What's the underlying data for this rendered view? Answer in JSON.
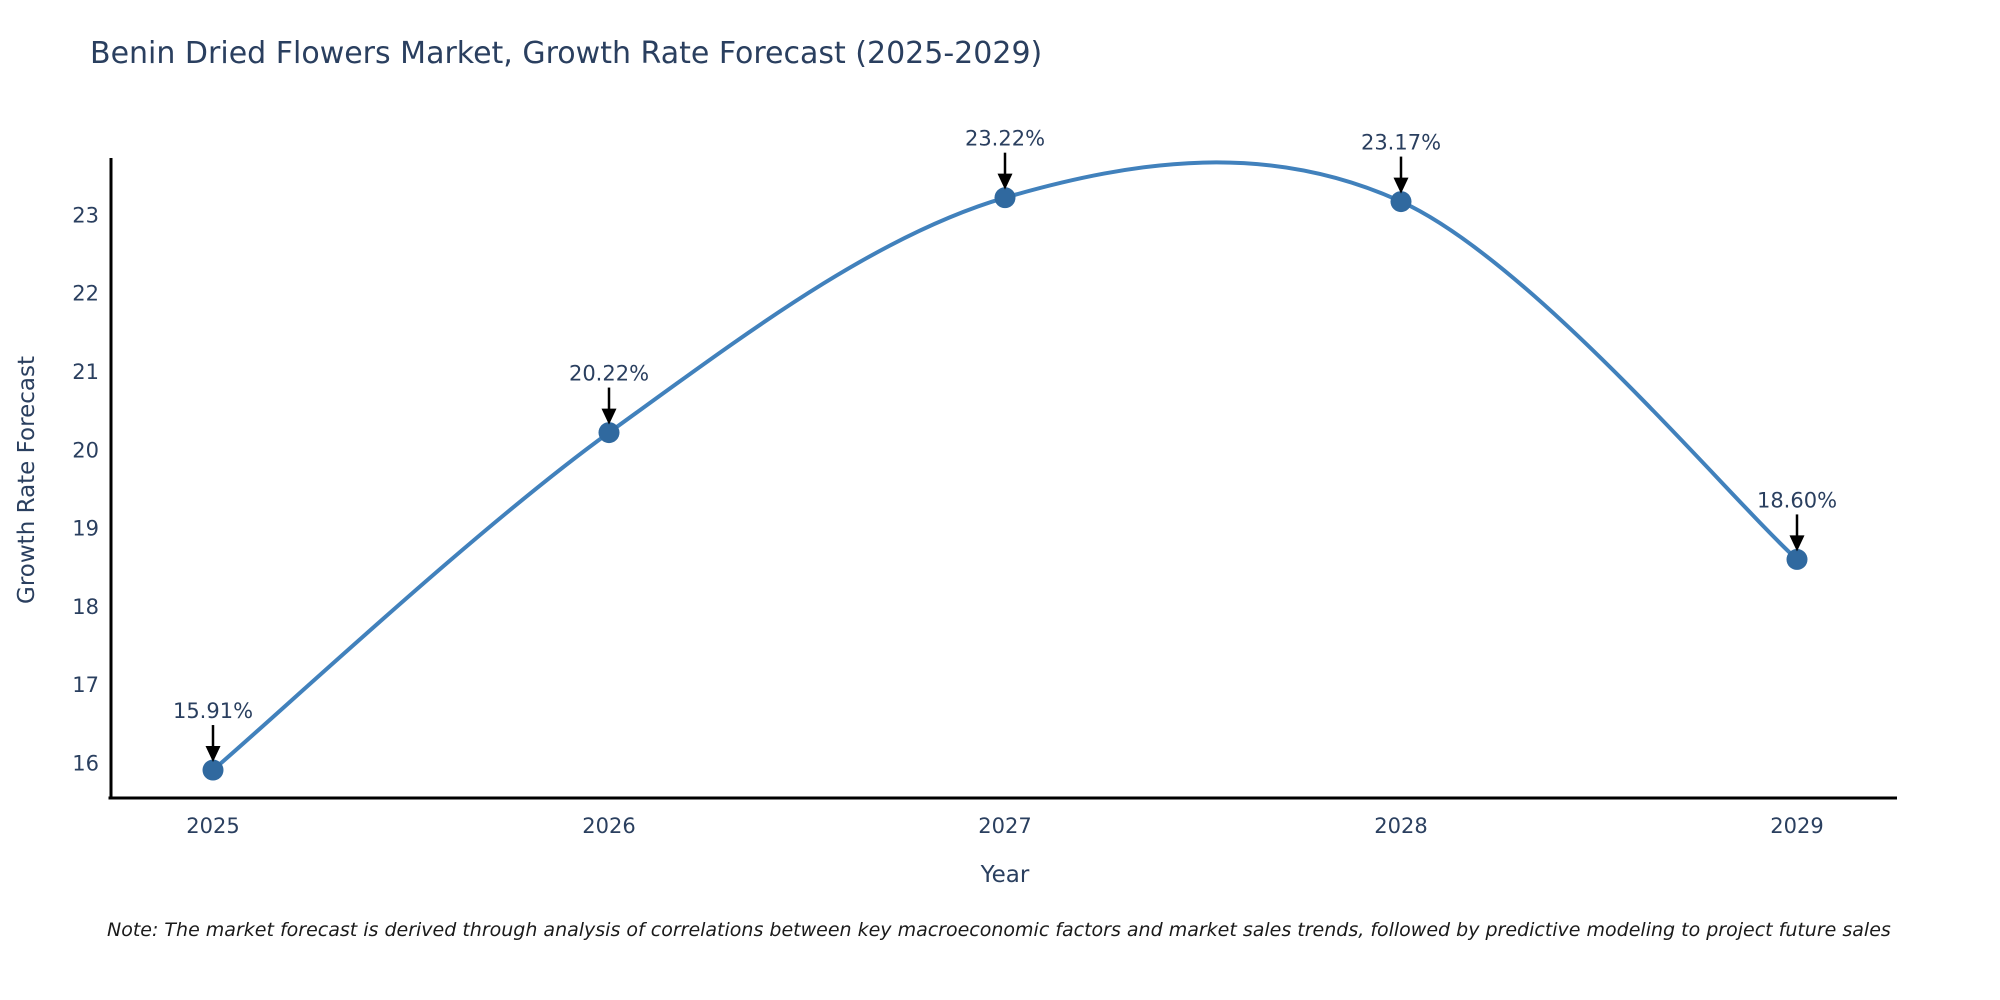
{
  "page": {
    "background": "#ffffff"
  },
  "chart_data": {
    "type": "line",
    "title": "Benin Dried Flowers Market, Growth Rate Forecast (2025-2029)",
    "xlabel": "Year",
    "ylabel": "Growth Rate Forecast",
    "x": [
      2025,
      2026,
      2027,
      2028,
      2029
    ],
    "x_tick_labels": [
      "2025",
      "2026",
      "2027",
      "2028",
      "2029"
    ],
    "y": [
      15.91,
      20.22,
      23.22,
      23.17,
      18.6
    ],
    "point_labels": [
      "15.91%",
      "20.22%",
      "23.22%",
      "23.17%",
      "18.60%"
    ],
    "y_ticks": [
      16,
      17,
      18,
      19,
      20,
      21,
      22,
      23
    ],
    "y_tick_labels": [
      "16",
      "17",
      "18",
      "19",
      "20",
      "21",
      "22",
      "23"
    ],
    "xlim": [
      2024.73,
      2029.25
    ],
    "ylim": [
      15.55,
      23.77
    ],
    "line_shape": "spline",
    "grid": false,
    "legend_position": "none",
    "colors": {
      "line": "#4181bc",
      "marker": "#30699f",
      "axis": "#000000",
      "text": "#2a3f5f",
      "annotation_arrow": "#000000"
    }
  },
  "note": {
    "text": "Note: The market forecast is derived through analysis of correlations between key macroeconomic factors and market sales trends, followed by predictive modeling to project future sales"
  }
}
